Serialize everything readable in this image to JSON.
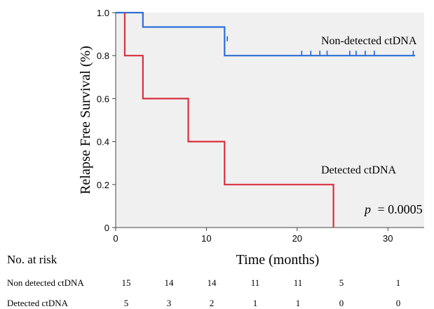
{
  "chart_data": {
    "type": "line",
    "step": true,
    "xlabel": "Time (months)",
    "ylabel": "Relapse Free  Survival (%)",
    "xlim": [
      0,
      34
    ],
    "ylim": [
      0,
      1.0
    ],
    "xticks": [
      0,
      10,
      20,
      30
    ],
    "yticks": [
      0,
      0.2,
      0.4,
      0.6,
      0.8,
      1.0
    ],
    "xtick_labels": [
      "0",
      "10",
      "20",
      "30"
    ],
    "ytick_labels": [
      "0",
      "0.2",
      "0.4",
      "0.6",
      "0.8",
      "1.0"
    ],
    "grid": false,
    "series": [
      {
        "name": "Non-detected ctDNA",
        "color": "#2e6fd6",
        "steps": [
          [
            0,
            1.0
          ],
          [
            3,
            0.933
          ],
          [
            12,
            0.8
          ],
          [
            33,
            0.8
          ]
        ],
        "censored": [
          [
            12.3,
            0.867
          ],
          [
            20.5,
            0.8
          ],
          [
            21.5,
            0.8
          ],
          [
            22.5,
            0.8
          ],
          [
            23.3,
            0.8
          ],
          [
            25.8,
            0.8
          ],
          [
            26.5,
            0.8
          ],
          [
            27.5,
            0.8
          ],
          [
            28.5,
            0.8
          ],
          [
            32.8,
            0.8
          ]
        ]
      },
      {
        "name": "Detected ctDNA",
        "color": "#d9303f",
        "steps": [
          [
            1,
            1.0
          ],
          [
            1,
            0.8
          ],
          [
            3,
            0.6
          ],
          [
            8,
            0.4
          ],
          [
            12,
            0.2
          ],
          [
            24,
            0.0
          ]
        ],
        "censored": []
      }
    ],
    "annotation": {
      "p_label": "p",
      "p_value": "= 0.0005"
    }
  },
  "risk_table": {
    "title": "No. at risk",
    "rows": [
      {
        "label": "Non detected ctDNA",
        "values": [
          "15",
          "14",
          "14",
          "11",
          "11",
          "5",
          "1"
        ]
      },
      {
        "label": "Detected ctDNA",
        "values": [
          "5",
          "3",
          "2",
          "1",
          "1",
          "0",
          "0"
        ]
      }
    ]
  }
}
